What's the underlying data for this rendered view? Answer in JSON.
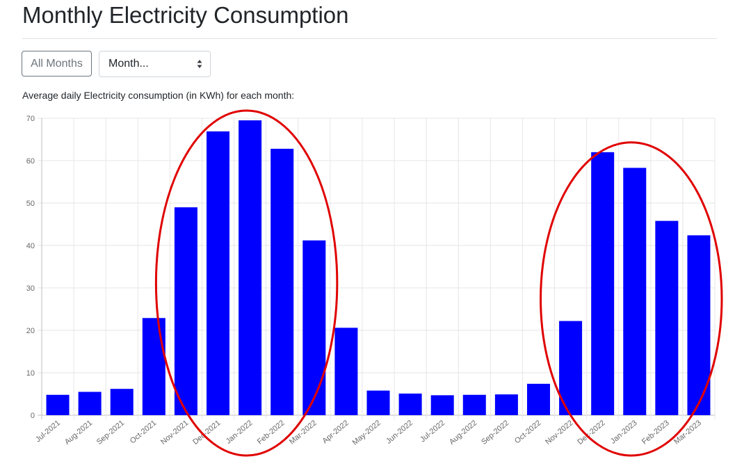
{
  "page": {
    "title": "Monthly Electricity Consumption",
    "all_months_label": "All Months",
    "month_select_value": "Month...",
    "caption": "Average daily Electricity consumption (in KWh) for each month:"
  },
  "colors": {
    "bar": "#0000ff",
    "highlight_ellipse": "#e00000",
    "grid": "#e6e6e6"
  },
  "chart_data": {
    "type": "bar",
    "categories": [
      "Jul-2021",
      "Aug-2021",
      "Sep-2021",
      "Oct-2021",
      "Nov-2021",
      "Dec-2021",
      "Jan-2022",
      "Feb-2022",
      "Mar-2022",
      "Apr-2022",
      "May-2022",
      "Jun-2022",
      "Jul-2022",
      "Aug-2022",
      "Sep-2022",
      "Oct-2022",
      "Nov-2022",
      "Dec-2022",
      "Jan-2023",
      "Feb-2023",
      "Mar-2023"
    ],
    "values": [
      4.8,
      5.5,
      6.2,
      22.9,
      49.0,
      66.9,
      69.5,
      62.8,
      41.2,
      20.6,
      5.8,
      5.1,
      4.7,
      4.8,
      4.9,
      7.4,
      22.2,
      62.0,
      58.3,
      45.8,
      42.4
    ],
    "ylim": [
      0,
      70
    ],
    "yticks": [
      0,
      10,
      20,
      30,
      40,
      50,
      60,
      70
    ],
    "grid": true,
    "legend": "none",
    "highlight_groups": [
      [
        "Nov-2021",
        "Dec-2021",
        "Jan-2022",
        "Feb-2022",
        "Mar-2022"
      ],
      [
        "Nov-2022",
        "Dec-2022",
        "Jan-2023",
        "Feb-2023",
        "Mar-2023"
      ]
    ]
  }
}
